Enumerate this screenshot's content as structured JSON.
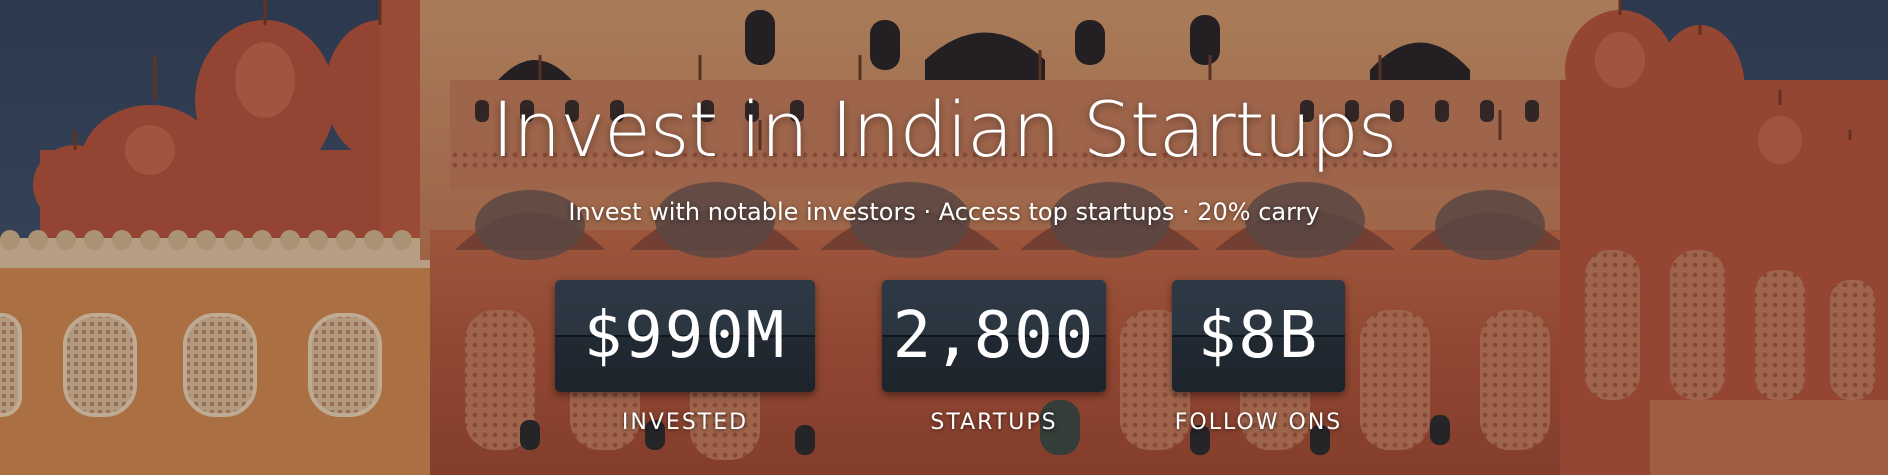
{
  "hero": {
    "headline": "Invest in Indian Startups",
    "tagline": "Invest with notable investors · Access top startups · 20% carry",
    "background_image": "hawa-mahal-palace-facade"
  },
  "stats": [
    {
      "value": "$990M",
      "label": "INVESTED"
    },
    {
      "value": "2,800",
      "label": "STARTUPS"
    },
    {
      "value": "$8B",
      "label": "FOLLOW ONS"
    }
  ],
  "colors": {
    "sky": "#3c4d68",
    "sandstone": "#c9663f",
    "stat_box": "#262f39",
    "text": "#ffffff"
  }
}
